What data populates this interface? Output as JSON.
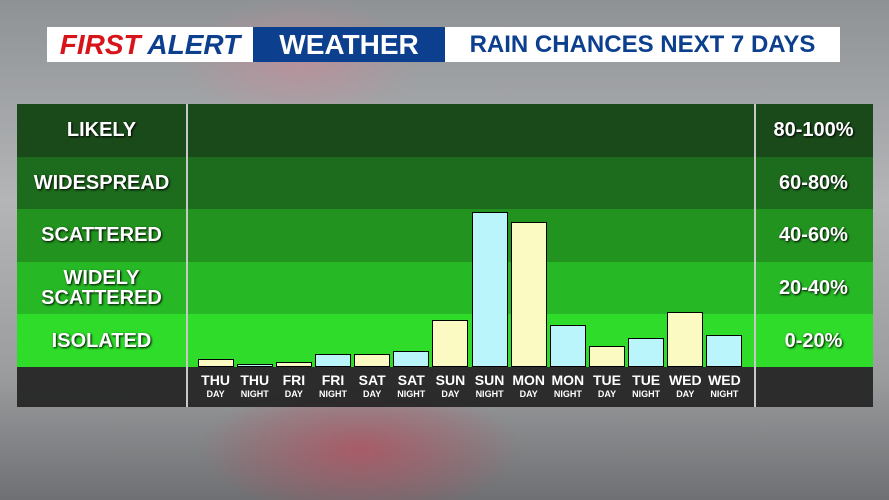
{
  "header": {
    "first": "FIRST",
    "alert": "ALERT",
    "weather": "WEATHER",
    "subtitle": "RAIN CHANCES NEXT 7 DAYS"
  },
  "chart_data": {
    "type": "bar",
    "categories": [
      "THU",
      "THU",
      "FRI",
      "FRI",
      "SAT",
      "SAT",
      "SUN",
      "SUN",
      "MON",
      "MON",
      "TUE",
      "TUE",
      "WED",
      "WED"
    ],
    "periods": [
      "DAY",
      "NIGHT",
      "DAY",
      "NIGHT",
      "DAY",
      "NIGHT",
      "DAY",
      "NIGHT",
      "DAY",
      "NIGHT",
      "DAY",
      "NIGHT",
      "DAY",
      "NIGHT"
    ],
    "values": [
      3,
      1,
      2,
      5,
      5,
      6,
      18,
      59,
      55,
      16,
      8,
      11,
      21,
      12
    ],
    "colors": [
      "#fbfac2",
      "#b9f5fa",
      "#fbfac2",
      "#b9f5fa",
      "#fbfac2",
      "#b9f5fa",
      "#fbfac2",
      "#b9f5fa",
      "#fbfac2",
      "#b9f5fa",
      "#fbfac2",
      "#b9f5fa",
      "#fbfac2",
      "#b9f5fa"
    ],
    "ylim": [
      0,
      100
    ],
    "bands": [
      {
        "label": "LIKELY",
        "range": "80-100%",
        "from": 80,
        "to": 100,
        "color": "#1a4a1a"
      },
      {
        "label": "WIDESPREAD",
        "range": "60-80%",
        "from": 60,
        "to": 80,
        "color": "#1d6b1d"
      },
      {
        "label": "SCATTERED",
        "range": "40-60%",
        "from": 40,
        "to": 60,
        "color": "#22931f"
      },
      {
        "label": "WIDELY SCATTERED",
        "range": "20-40%",
        "from": 20,
        "to": 40,
        "color": "#27b825"
      },
      {
        "label": "ISOLATED",
        "range": "0-20%",
        "from": 0,
        "to": 20,
        "color": "#2edc29"
      }
    ]
  }
}
